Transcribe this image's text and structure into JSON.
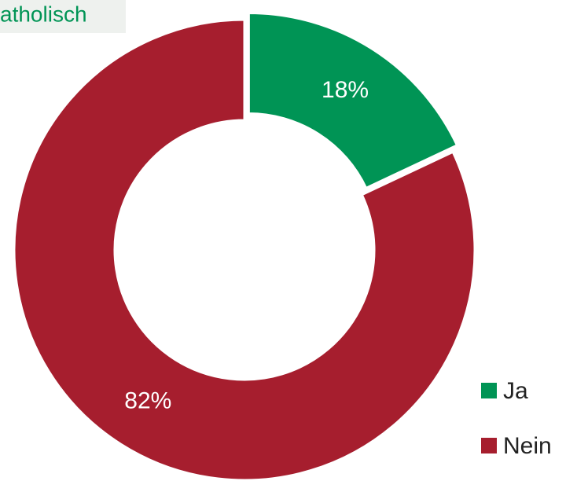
{
  "chart_data": {
    "type": "pie",
    "title": "atholisch",
    "categories": [
      "Ja",
      "Nein"
    ],
    "values": [
      18,
      82
    ],
    "value_labels": [
      "18%",
      "82%"
    ],
    "colors": [
      "#009455",
      "#a61e2e"
    ],
    "donut": true,
    "legend": "bottom-right"
  }
}
